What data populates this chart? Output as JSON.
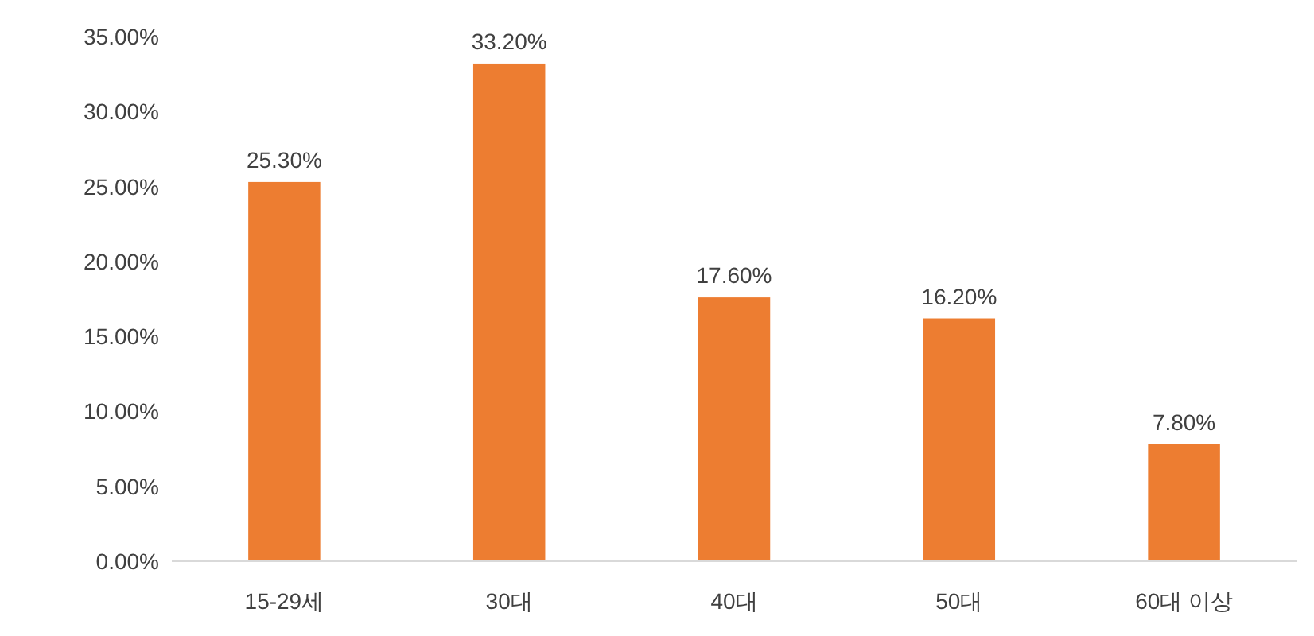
{
  "chart_data": {
    "type": "bar",
    "categories": [
      "15-29세",
      "30대",
      "40대",
      "50대",
      "60대 이상"
    ],
    "values": [
      25.3,
      33.2,
      17.6,
      16.2,
      7.8
    ],
    "value_labels": [
      "25.30%",
      "33.20%",
      "17.60%",
      "16.20%",
      "7.80%"
    ],
    "color": "#ed7d31",
    "ylim": [
      0,
      35
    ],
    "yticks": [
      {
        "value": 0,
        "label": "0.00%"
      },
      {
        "value": 5,
        "label": "5.00%"
      },
      {
        "value": 10,
        "label": "10.00%"
      },
      {
        "value": 15,
        "label": "15.00%"
      },
      {
        "value": 20,
        "label": "20.00%"
      },
      {
        "value": 25,
        "label": "25.00%"
      },
      {
        "value": 30,
        "label": "30.00%"
      },
      {
        "value": 35,
        "label": "35.00%"
      }
    ],
    "grid": false
  }
}
